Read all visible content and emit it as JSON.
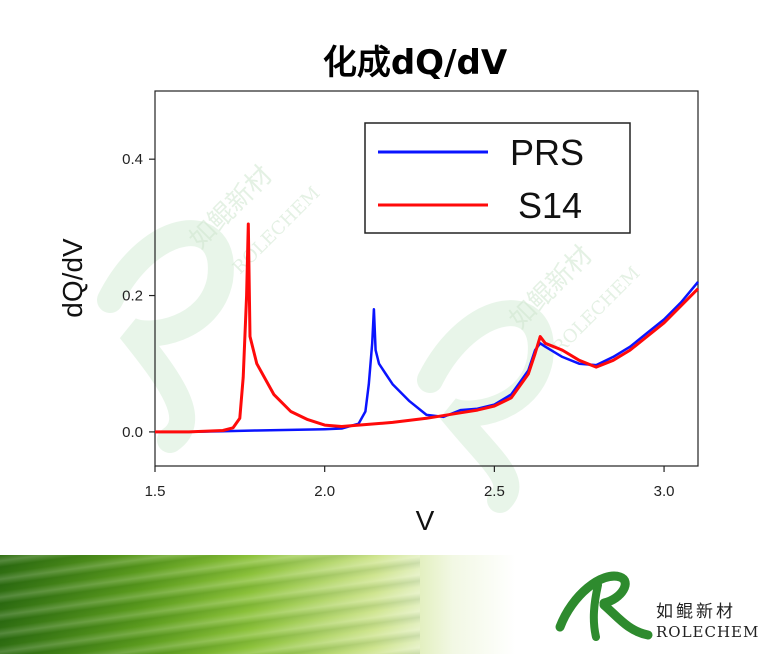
{
  "slide": {
    "watermark_cn": "如鲲新材",
    "watermark_en": "ROLECHEM",
    "brand_colors": {
      "green": "#2e8b2e",
      "light_green": "#cfe58f"
    }
  },
  "chart_data": {
    "type": "line",
    "title": "化成dQ/dV",
    "xlabel": "V",
    "ylabel": "dQ/dV",
    "xlim": [
      1.5,
      3.1
    ],
    "ylim": [
      -0.05,
      0.5
    ],
    "xticks": [
      1.5,
      2.0,
      2.5,
      3.0
    ],
    "xtick_labels": [
      "1.5",
      "2.0",
      "2.5",
      "3.0"
    ],
    "yticks": [
      0.0,
      0.2,
      0.4
    ],
    "ytick_labels": [
      "0.0",
      "0.2",
      "0.4"
    ],
    "grid": false,
    "legend_position": "top-right",
    "series": [
      {
        "name": "PRS",
        "color": "#0a14ff",
        "x": [
          1.5,
          1.6,
          1.7,
          1.8,
          1.9,
          2.0,
          2.05,
          2.1,
          2.12,
          2.13,
          2.14,
          2.145,
          2.15,
          2.16,
          2.18,
          2.2,
          2.25,
          2.3,
          2.35,
          2.4,
          2.45,
          2.5,
          2.55,
          2.6,
          2.62,
          2.635,
          2.65,
          2.7,
          2.75,
          2.8,
          2.85,
          2.9,
          2.95,
          3.0,
          3.05,
          3.1
        ],
        "y": [
          0.0,
          0.0,
          0.001,
          0.002,
          0.003,
          0.004,
          0.005,
          0.012,
          0.03,
          0.07,
          0.13,
          0.18,
          0.12,
          0.1,
          0.085,
          0.07,
          0.045,
          0.025,
          0.022,
          0.032,
          0.034,
          0.04,
          0.055,
          0.09,
          0.12,
          0.13,
          0.125,
          0.11,
          0.1,
          0.098,
          0.11,
          0.125,
          0.145,
          0.165,
          0.19,
          0.22
        ]
      },
      {
        "name": "S14",
        "color": "#ff0a0a",
        "x": [
          1.5,
          1.6,
          1.7,
          1.73,
          1.75,
          1.76,
          1.77,
          1.775,
          1.78,
          1.8,
          1.85,
          1.9,
          1.95,
          2.0,
          2.05,
          2.1,
          2.2,
          2.3,
          2.4,
          2.45,
          2.5,
          2.55,
          2.6,
          2.62,
          2.635,
          2.65,
          2.7,
          2.75,
          2.8,
          2.85,
          2.9,
          2.95,
          3.0,
          3.05,
          3.1
        ],
        "y": [
          0.0,
          0.0,
          0.002,
          0.006,
          0.02,
          0.08,
          0.2,
          0.305,
          0.14,
          0.1,
          0.055,
          0.03,
          0.018,
          0.01,
          0.008,
          0.01,
          0.014,
          0.02,
          0.028,
          0.032,
          0.038,
          0.05,
          0.085,
          0.115,
          0.14,
          0.13,
          0.12,
          0.105,
          0.095,
          0.105,
          0.12,
          0.14,
          0.16,
          0.185,
          0.21
        ]
      }
    ]
  }
}
